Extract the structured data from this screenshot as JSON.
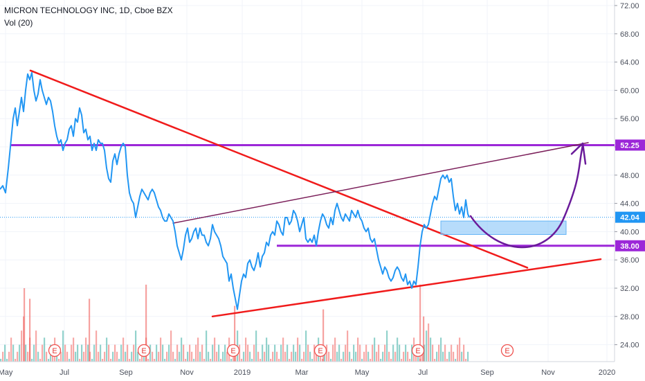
{
  "header": {
    "symbol_line": "MICRON TECHNOLOGY INC, 1D, Cboe BZX",
    "volume_label": "Vol (20)"
  },
  "chart_data": {
    "type": "line",
    "ylim": [
      22,
      73
    ],
    "y_ticks": [
      "72.00",
      "68.00",
      "64.00",
      "60.00",
      "56.00",
      "52.00",
      "48.00",
      "44.00",
      "40.00",
      "36.00",
      "32.00",
      "28.00",
      "24.00"
    ],
    "x_ticks": [
      "May",
      "Jul",
      "Sep",
      "Nov",
      "2019",
      "Mar",
      "May",
      "Jul",
      "Sep",
      "Nov",
      "2020"
    ],
    "price_line_color": "#2196f3",
    "price_series": [
      [
        0,
        46
      ],
      [
        4,
        46.5
      ],
      [
        8,
        45.5
      ],
      [
        12,
        49
      ],
      [
        16,
        53
      ],
      [
        19,
        56
      ],
      [
        22,
        57.5
      ],
      [
        25,
        55
      ],
      [
        28,
        57
      ],
      [
        31,
        59
      ],
      [
        34,
        57
      ],
      [
        37,
        60
      ],
      [
        40,
        62.3
      ],
      [
        43,
        61.5
      ],
      [
        46,
        62.5
      ],
      [
        49,
        60
      ],
      [
        52,
        58.5
      ],
      [
        55,
        59.5
      ],
      [
        58,
        61.5
      ],
      [
        61,
        60
      ],
      [
        64,
        59
      ],
      [
        67,
        58
      ],
      [
        70,
        59
      ],
      [
        73,
        58.5
      ],
      [
        76,
        57
      ],
      [
        79,
        55
      ],
      [
        82,
        53.5
      ],
      [
        85,
        52.5
      ],
      [
        88,
        53
      ],
      [
        91,
        51.5
      ],
      [
        94,
        52.5
      ],
      [
        97,
        53
      ],
      [
        100,
        54.5
      ],
      [
        103,
        55
      ],
      [
        106,
        53.5
      ],
      [
        109,
        56
      ],
      [
        112,
        55.5
      ],
      [
        115,
        57.5
      ],
      [
        118,
        56.5
      ],
      [
        121,
        54
      ],
      [
        124,
        54.5
      ],
      [
        127,
        53
      ],
      [
        130,
        53.5
      ],
      [
        133,
        51.5
      ],
      [
        136,
        52.5
      ],
      [
        139,
        51.5
      ],
      [
        142,
        53
      ],
      [
        145,
        52.5
      ],
      [
        148,
        52.5
      ],
      [
        151,
        51.5
      ],
      [
        154,
        49
      ],
      [
        157,
        47.5
      ],
      [
        160,
        47
      ],
      [
        163,
        50
      ],
      [
        166,
        51
      ],
      [
        169,
        49.5
      ],
      [
        172,
        51
      ],
      [
        175,
        52
      ],
      [
        178,
        52.5
      ],
      [
        181,
        52
      ],
      [
        184,
        48
      ],
      [
        187,
        45.5
      ],
      [
        190,
        44.5
      ],
      [
        193,
        44
      ],
      [
        196,
        42
      ],
      [
        199,
        43.5
      ],
      [
        202,
        45
      ],
      [
        205,
        46
      ],
      [
        208,
        45.5
      ],
      [
        211,
        45
      ],
      [
        214,
        44.5
      ],
      [
        217,
        45.5
      ],
      [
        220,
        46
      ],
      [
        223,
        45.5
      ],
      [
        226,
        44.5
      ],
      [
        229,
        43.5
      ],
      [
        232,
        43
      ],
      [
        235,
        42
      ],
      [
        238,
        41.5
      ],
      [
        241,
        41.5
      ],
      [
        244,
        42.5
      ],
      [
        247,
        42
      ],
      [
        250,
        41.5
      ],
      [
        253,
        40
      ],
      [
        256,
        38
      ],
      [
        259,
        37
      ],
      [
        262,
        36
      ],
      [
        265,
        37.5
      ],
      [
        268,
        39.5
      ],
      [
        271,
        40.5
      ],
      [
        274,
        38.5
      ],
      [
        277,
        39
      ],
      [
        280,
        40
      ],
      [
        283,
        40.5
      ],
      [
        286,
        39
      ],
      [
        289,
        40.5
      ],
      [
        292,
        39.5
      ],
      [
        295,
        39.5
      ],
      [
        298,
        38.5
      ],
      [
        301,
        38
      ],
      [
        304,
        39
      ],
      [
        307,
        41
      ],
      [
        310,
        40
      ],
      [
        313,
        39.5
      ],
      [
        316,
        39
      ],
      [
        319,
        38
      ],
      [
        322,
        36.5
      ],
      [
        325,
        36
      ],
      [
        328,
        35.5
      ],
      [
        331,
        33
      ],
      [
        334,
        34
      ],
      [
        337,
        32
      ],
      [
        340,
        30.5
      ],
      [
        343,
        29
      ],
      [
        346,
        31
      ],
      [
        349,
        33
      ],
      [
        352,
        34
      ],
      [
        355,
        33.5
      ],
      [
        358,
        35.5
      ],
      [
        361,
        36
      ],
      [
        364,
        35
      ],
      [
        367,
        34.5
      ],
      [
        370,
        35.5
      ],
      [
        373,
        37
      ],
      [
        376,
        35
      ],
      [
        379,
        36.5
      ],
      [
        382,
        37
      ],
      [
        385,
        38.5
      ],
      [
        388,
        38
      ],
      [
        391,
        39.5
      ],
      [
        394,
        40
      ],
      [
        397,
        39.5
      ],
      [
        400,
        41.5
      ],
      [
        403,
        41
      ],
      [
        406,
        40
      ],
      [
        409,
        39.5
      ],
      [
        412,
        42
      ],
      [
        415,
        42
      ],
      [
        418,
        41
      ],
      [
        421,
        41.5
      ],
      [
        424,
        43
      ],
      [
        427,
        42.5
      ],
      [
        430,
        41.5
      ],
      [
        433,
        40
      ],
      [
        436,
        41
      ],
      [
        439,
        42
      ],
      [
        442,
        39
      ],
      [
        445,
        38.5
      ],
      [
        448,
        39
      ],
      [
        451,
        38.5
      ],
      [
        454,
        39.5
      ],
      [
        457,
        38
      ],
      [
        460,
        40
      ],
      [
        463,
        41.5
      ],
      [
        466,
        42.5
      ],
      [
        469,
        42
      ],
      [
        472,
        41
      ],
      [
        475,
        40.5
      ],
      [
        478,
        42
      ],
      [
        481,
        41
      ],
      [
        484,
        43
      ],
      [
        487,
        44
      ],
      [
        490,
        43
      ],
      [
        493,
        42
      ],
      [
        496,
        41.5
      ],
      [
        499,
        42.5
      ],
      [
        502,
        42
      ],
      [
        505,
        41.5
      ],
      [
        508,
        43
      ],
      [
        511,
        42.5
      ],
      [
        514,
        42
      ],
      [
        517,
        43
      ],
      [
        520,
        42
      ],
      [
        523,
        41.5
      ],
      [
        526,
        40.5
      ],
      [
        529,
        40
      ],
      [
        532,
        40.5
      ],
      [
        535,
        39
      ],
      [
        538,
        38.5
      ],
      [
        541,
        39
      ],
      [
        544,
        37.5
      ],
      [
        547,
        36
      ],
      [
        550,
        35
      ],
      [
        553,
        34
      ],
      [
        556,
        35
      ],
      [
        559,
        34.5
      ],
      [
        562,
        33.5
      ],
      [
        565,
        33
      ],
      [
        568,
        33.5
      ],
      [
        571,
        34.5
      ],
      [
        574,
        35
      ],
      [
        577,
        34.5
      ],
      [
        580,
        33.5
      ],
      [
        583,
        33
      ],
      [
        586,
        34
      ],
      [
        589,
        32.5
      ],
      [
        592,
        33
      ],
      [
        595,
        32
      ],
      [
        598,
        33
      ],
      [
        601,
        32.5
      ],
      [
        604,
        35
      ],
      [
        607,
        38
      ],
      [
        610,
        40
      ],
      [
        613,
        41
      ],
      [
        616,
        40.5
      ],
      [
        619,
        41
      ],
      [
        622,
        42.5
      ],
      [
        625,
        44
      ],
      [
        628,
        45
      ],
      [
        631,
        44.5
      ],
      [
        634,
        46
      ],
      [
        637,
        47.5
      ],
      [
        640,
        48
      ],
      [
        643,
        47.5
      ],
      [
        646,
        48
      ],
      [
        649,
        47
      ],
      [
        652,
        47.5
      ],
      [
        655,
        45
      ],
      [
        658,
        43
      ],
      [
        661,
        44
      ],
      [
        664,
        42.5
      ],
      [
        667,
        43.5
      ],
      [
        670,
        42
      ],
      [
        673,
        44.5
      ],
      [
        676,
        42.5
      ],
      [
        678,
        42
      ]
    ],
    "volume_series": [
      22,
      23,
      24,
      22,
      23,
      25,
      24,
      22,
      23,
      24,
      26,
      28,
      24,
      23,
      25,
      22,
      24,
      26,
      23,
      22,
      24,
      25,
      23,
      22,
      24,
      23,
      25,
      24,
      22,
      23,
      26,
      24,
      23,
      22,
      24,
      25,
      23,
      24,
      22,
      24,
      23,
      25,
      24,
      23,
      22,
      24,
      26,
      23,
      24,
      22,
      23,
      25,
      24,
      22,
      23,
      24,
      23,
      22,
      24,
      25,
      23,
      24,
      22,
      23,
      24,
      26,
      23,
      22,
      24,
      23,
      25,
      22,
      24,
      23,
      22,
      24,
      23,
      25,
      24,
      22,
      23,
      24,
      26,
      23,
      22,
      24,
      23,
      25,
      24,
      22,
      23,
      24,
      23,
      22,
      24,
      25,
      23,
      24,
      22,
      26,
      23,
      22,
      24,
      25,
      23,
      24,
      22,
      23,
      24,
      23,
      25,
      22,
      24,
      23,
      26,
      24,
      22,
      23,
      25,
      24,
      23,
      22,
      24,
      26,
      23,
      22,
      24,
      23,
      25,
      24,
      22,
      23,
      24,
      23,
      22,
      24,
      25,
      23,
      24,
      22,
      23,
      24,
      23,
      25,
      24,
      22,
      23,
      26,
      24,
      23,
      22,
      24,
      23,
      25,
      24,
      22,
      23,
      24,
      23,
      22,
      24,
      25,
      23,
      24,
      22,
      23,
      24,
      26,
      23,
      22,
      24,
      23,
      25,
      24,
      22,
      23,
      24,
      23,
      22,
      24,
      25,
      23,
      24,
      22,
      23,
      24,
      26,
      23,
      22,
      24,
      23,
      25,
      24,
      22,
      23,
      24,
      23,
      22,
      24,
      25,
      23,
      24,
      22,
      23,
      24,
      26,
      27,
      25,
      24,
      22,
      23,
      24,
      25,
      23,
      24,
      22,
      23,
      24,
      23,
      22,
      24,
      25,
      23,
      24,
      22,
      23,
      24,
      23,
      22,
      24,
      25,
      23
    ],
    "volume_spikes": [
      [
        34,
        32
      ],
      [
        42,
        30.5
      ],
      [
        128,
        30.5
      ],
      [
        210,
        32.5
      ],
      [
        338,
        29.5
      ],
      [
        466,
        29
      ],
      [
        606,
        32.5
      ],
      [
        611,
        28
      ]
    ],
    "volume_up_color": "#26a69a",
    "volume_down_color": "#ef5350",
    "trendlines": [
      {
        "from": [
          44,
          62.8
        ],
        "to": [
          762,
          34.9
        ],
        "color": "#f01b1b",
        "width": 2.5
      },
      {
        "from": [
          307,
          28
        ],
        "to": [
          868,
          36.1
        ],
        "color": "#f01b1b",
        "width": 2.5
      },
      {
        "from": [
          250,
          41.2
        ],
        "to": [
          850,
          52.6
        ],
        "color": "#7b1f5a",
        "width": 1.5
      }
    ],
    "horizontal_lines": [
      {
        "price": 52.25,
        "from": 16,
        "color": "#9c27d8",
        "label": "52.25"
      },
      {
        "price": 38.0,
        "from": 400,
        "color": "#9c27d8",
        "label": "38.00"
      }
    ],
    "last_price": {
      "price": 42.04,
      "label": "42.04",
      "color": "#2196f3"
    },
    "zone": {
      "from": [
        637,
        41.5
      ],
      "to": [
        818,
        39.6
      ],
      "fill": "#90caf9"
    },
    "projection_color": "#6a1b9a",
    "earnings_markers": [
      79,
      208,
      337,
      463,
      604,
      733
    ],
    "earnings_label": "E"
  }
}
